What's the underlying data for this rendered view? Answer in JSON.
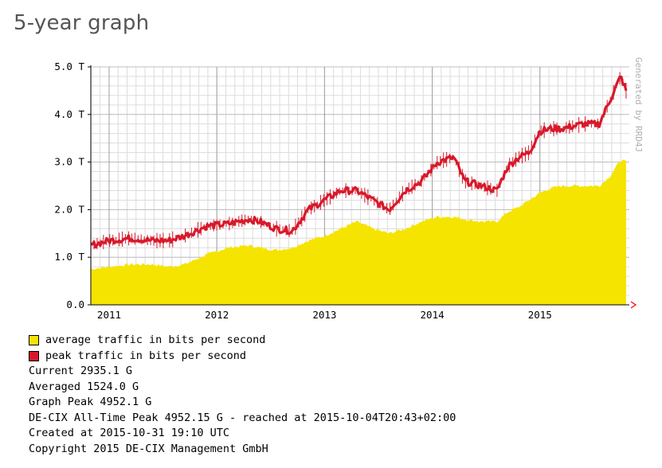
{
  "page": {
    "title": "5-year graph"
  },
  "colors": {
    "average": "#f5e400",
    "peak": "#d8192a",
    "grid_minor": "#dcdcdc",
    "grid_major": "#a0a0a0",
    "axis_arrow": "#ff0000"
  },
  "chart_data": {
    "type": "area",
    "title": "",
    "ylabel": "",
    "xlabel": "",
    "watermark": "Generated by RRD4J",
    "y_ticks": [
      "0.0",
      "1.0 T",
      "2.0 T",
      "3.0 T",
      "4.0 T",
      "5.0 T"
    ],
    "y_tick_values": [
      0,
      1,
      2,
      3,
      4,
      5
    ],
    "ylim": [
      0,
      5
    ],
    "x_range": [
      2010.83,
      2015.83
    ],
    "x_ticks": [
      {
        "label": "2011",
        "value": 2011
      },
      {
        "label": "2012",
        "value": 2012
      },
      {
        "label": "2013",
        "value": 2013
      },
      {
        "label": "2014",
        "value": 2014
      },
      {
        "label": "2015",
        "value": 2015
      }
    ],
    "grid": true,
    "legend_position": "bottom-left",
    "series": [
      {
        "name": "average traffic in bits per second",
        "style": "area",
        "x": [
          2010.83,
          2011.0,
          2011.2,
          2011.4,
          2011.55,
          2011.7,
          2011.9,
          2012.1,
          2012.3,
          2012.4,
          2012.55,
          2012.7,
          2012.85,
          2013.0,
          2013.15,
          2013.3,
          2013.45,
          2013.6,
          2013.75,
          2013.9,
          2014.05,
          2014.2,
          2014.3,
          2014.45,
          2014.6,
          2014.7,
          2014.8,
          2014.9,
          2015.0,
          2015.1,
          2015.2,
          2015.4,
          2015.55,
          2015.65,
          2015.75,
          2015.8
        ],
        "values": [
          0.75,
          0.8,
          0.85,
          0.85,
          0.8,
          0.85,
          1.05,
          1.2,
          1.25,
          1.2,
          1.15,
          1.2,
          1.35,
          1.45,
          1.6,
          1.75,
          1.6,
          1.5,
          1.6,
          1.75,
          1.85,
          1.85,
          1.8,
          1.75,
          1.75,
          1.95,
          2.05,
          2.2,
          2.35,
          2.45,
          2.5,
          2.5,
          2.5,
          2.7,
          3.05,
          3.0
        ]
      },
      {
        "name": "peak traffic in bits per second",
        "style": "line",
        "x": [
          2010.83,
          2011.0,
          2011.2,
          2011.4,
          2011.55,
          2011.7,
          2011.9,
          2012.1,
          2012.3,
          2012.4,
          2012.55,
          2012.7,
          2012.85,
          2013.0,
          2013.15,
          2013.3,
          2013.45,
          2013.6,
          2013.75,
          2013.9,
          2014.05,
          2014.2,
          2014.3,
          2014.45,
          2014.6,
          2014.7,
          2014.8,
          2014.9,
          2015.0,
          2015.1,
          2015.2,
          2015.4,
          2015.55,
          2015.65,
          2015.75,
          2015.8
        ],
        "values": [
          1.25,
          1.35,
          1.4,
          1.35,
          1.35,
          1.45,
          1.65,
          1.7,
          1.8,
          1.75,
          1.6,
          1.55,
          2.0,
          2.2,
          2.4,
          2.4,
          2.2,
          2.0,
          2.4,
          2.6,
          3.0,
          3.1,
          2.6,
          2.5,
          2.4,
          2.9,
          3.1,
          3.2,
          3.65,
          3.7,
          3.7,
          3.8,
          3.8,
          4.3,
          4.8,
          4.5
        ]
      }
    ]
  },
  "legend": [
    {
      "label": "average traffic in bits per second"
    },
    {
      "label": "peak traffic in bits per second"
    }
  ],
  "stats": {
    "current": "Current 2935.1 G",
    "averaged": "Averaged 1524.0 G",
    "graph_peak": "Graph Peak 4952.1 G",
    "all_time_peak": "DE-CIX All-Time Peak 4952.15 G - reached at 2015-10-04T20:43+02:00",
    "created": "Created at 2015-10-31 19:10 UTC",
    "copyright": "Copyright 2015 DE-CIX Management GmbH"
  }
}
